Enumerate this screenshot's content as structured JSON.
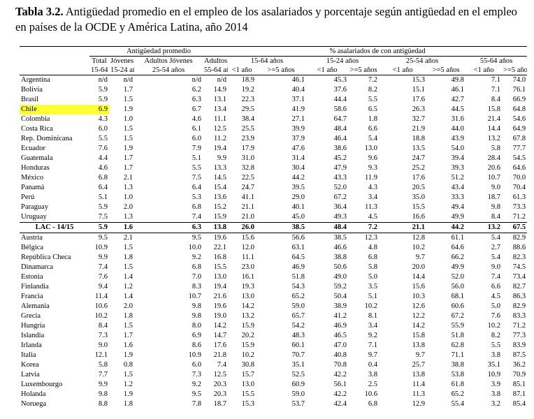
{
  "title": {
    "label": "Tabla 3.2.",
    "text": "Antigüedad promedio en el empleo de los asalariados y porcentaje según antigüedad en el empleo en países de la OCDE y América Latina, año 2014"
  },
  "table": {
    "group_headers": [
      "Antigüedad promedio",
      "% asalariados de con antigüedad"
    ],
    "headers": [
      "Total",
      "Jóvenes",
      "Adultos Jóvenes",
      "Adultos",
      "15-64 años",
      "15-24 años",
      "25-54 años",
      "55-64 años"
    ],
    "subheaders": [
      "15-64 años",
      "15-24 años",
      "25-54 años",
      "55-64 años",
      "<1 año",
      ">=5 años",
      "<1 año",
      ">=5 años",
      "<1 año",
      ">=5 años",
      "<1 año",
      ">=5 años"
    ],
    "rows_lac": [
      [
        "Argentina",
        "n/d",
        "n/d",
        "n/d",
        "n/d",
        "18.9",
        "46.1",
        "45.3",
        "7.2",
        "15.3",
        "49.8",
        "7.1",
        "74.0"
      ],
      [
        "Bolivia",
        "5.9",
        "1.7",
        "6.2",
        "14.9",
        "19.2",
        "40.4",
        "37.6",
        "8.2",
        "15.1",
        "46.1",
        "7.1",
        "76.1"
      ],
      [
        "Brasil",
        "5.9",
        "1.5",
        "6.3",
        "13.1",
        "22.3",
        "37.1",
        "44.4",
        "5.5",
        "17.6",
        "42.7",
        "8.4",
        "66.9"
      ],
      [
        "Chile",
        "6.9",
        "1.9",
        "6.7",
        "13.4",
        "29.5",
        "41.9",
        "58.6",
        "6.5",
        "26.3",
        "44.5",
        "15.8",
        "64.8"
      ],
      [
        "Colombia",
        "4.3",
        "1.0",
        "4.6",
        "11.1",
        "38.4",
        "27.1",
        "64.7",
        "1.8",
        "32.7",
        "31.6",
        "21.4",
        "54.6"
      ],
      [
        "Costa Rica",
        "6.0",
        "1.5",
        "6.1",
        "12.5",
        "25.5",
        "39.9",
        "48.4",
        "6.6",
        "21.9",
        "44.0",
        "14.4",
        "64.9"
      ],
      [
        "Rep. Dominicana",
        "5.5",
        "1.5",
        "6.0",
        "11.2",
        "23.9",
        "37.9",
        "46.4",
        "5.4",
        "18.8",
        "43.9",
        "13.2",
        "67.8"
      ],
      [
        "Ecuador",
        "7.6",
        "1.9",
        "7.9",
        "19.4",
        "17.9",
        "47.6",
        "38.6",
        "13.0",
        "13.5",
        "54.0",
        "5.8",
        "77.7"
      ],
      [
        "Guatemala",
        "4.4",
        "1.7",
        "5.1",
        "9.9",
        "31.0",
        "31.4",
        "45.2",
        "9.6",
        "24.7",
        "39.4",
        "28.4",
        "54.5"
      ],
      [
        "Honduras",
        "4.6",
        "1.7",
        "5.5",
        "13.3",
        "32.8",
        "30.4",
        "47.9",
        "9.3",
        "25.2",
        "39.3",
        "20.6",
        "64.6"
      ],
      [
        "México",
        "6.8",
        "2.1",
        "7.5",
        "14.5",
        "22.5",
        "44.2",
        "43.3",
        "11.9",
        "17.6",
        "51.2",
        "10.7",
        "70.0"
      ],
      [
        "Panamá",
        "6.4",
        "1.3",
        "6.4",
        "15.4",
        "24.7",
        "39.5",
        "52.0",
        "4.3",
        "20.5",
        "43.4",
        "9.0",
        "70.4"
      ],
      [
        "Perú",
        "5.1",
        "1.0",
        "5.3",
        "13.6",
        "41.1",
        "29.0",
        "67.2",
        "3.4",
        "35.0",
        "33.3",
        "18.7",
        "61.3"
      ],
      [
        "Paraguay",
        "5.9",
        "2.0",
        "6.8",
        "15.2",
        "21.1",
        "40.1",
        "36.4",
        "11.3",
        "15.5",
        "49.4",
        "9.8",
        "73.3"
      ],
      [
        "Uruguay",
        "7.5",
        "1.3",
        "7.4",
        "15.9",
        "21.0",
        "45.0",
        "49.3",
        "4.5",
        "16.6",
        "49.9",
        "8.4",
        "71.2"
      ]
    ],
    "total_lac": [
      "LAC - 14/15",
      "5.9",
      "1.6",
      "6.3",
      "13.8",
      "26.0",
      "38.5",
      "48.4",
      "7.2",
      "21.1",
      "44.2",
      "13.2",
      "67.5"
    ],
    "rows_oecd": [
      [
        "Austria",
        "9.5",
        "2.1",
        "9.5",
        "19.6",
        "15.6",
        "56.6",
        "38.5",
        "12.3",
        "12.8",
        "61.1",
        "5.4",
        "82.9"
      ],
      [
        "Bélgica",
        "10.9",
        "1.5",
        "10.0",
        "22.1",
        "12.0",
        "63.1",
        "46.6",
        "4.8",
        "10.2",
        "64.6",
        "2.7",
        "88.6"
      ],
      [
        "República Checa",
        "9.9",
        "1.8",
        "9.2",
        "16.8",
        "11.1",
        "64.5",
        "38.8",
        "6.8",
        "9.7",
        "66.2",
        "5.4",
        "82.3"
      ],
      [
        "Dinamarca",
        "7.4",
        "1.5",
        "6.8",
        "15.5",
        "23.0",
        "46.9",
        "50.6",
        "5.8",
        "20.0",
        "49.9",
        "9.0",
        "74.5"
      ],
      [
        "Estonia",
        "7.6",
        "1.4",
        "7.0",
        "13.0",
        "16.1",
        "51.8",
        "49.0",
        "5.0",
        "14.4",
        "52.0",
        "7.4",
        "73.4"
      ],
      [
        "Finlandia",
        "9.4",
        "1.2",
        "8.3",
        "19.4",
        "19.3",
        "54.3",
        "59.2",
        "3.5",
        "15.6",
        "56.0",
        "6.6",
        "82.7"
      ],
      [
        "Francia",
        "11.4",
        "1.4",
        "10.7",
        "21.6",
        "13.0",
        "65.2",
        "50.4",
        "5.1",
        "10.3",
        "68.1",
        "4.5",
        "86.3"
      ],
      [
        "Alemania",
        "10.6",
        "2.0",
        "9.8",
        "19.6",
        "14.2",
        "59.0",
        "38.9",
        "10.2",
        "12.6",
        "60.6",
        "5.0",
        "82.9"
      ],
      [
        "Grecia",
        "10.2",
        "1.8",
        "9.8",
        "19.0",
        "13.2",
        "65.7",
        "41.2",
        "8.1",
        "12.2",
        "67.2",
        "7.6",
        "83.3"
      ],
      [
        "Hungría",
        "8.4",
        "1.5",
        "8.0",
        "14.2",
        "15.9",
        "54.2",
        "46.9",
        "3.4",
        "14.2",
        "55.9",
        "10.2",
        "71.2"
      ],
      [
        "Islandia",
        "7.3",
        "1.7",
        "6.9",
        "14.7",
        "20.2",
        "48.3",
        "46.5",
        "9.2",
        "15.8",
        "51.8",
        "8.2",
        "77.3"
      ],
      [
        "Irlanda",
        "9.0",
        "1.6",
        "8.6",
        "17.6",
        "15.9",
        "60.1",
        "47.0",
        "7.1",
        "13.8",
        "62.8",
        "5.5",
        "83.9"
      ],
      [
        "Italia",
        "12.1",
        "1.9",
        "10.9",
        "21.8",
        "10.2",
        "70.7",
        "40.8",
        "9.7",
        "9.7",
        "71.1",
        "3.8",
        "87.5"
      ],
      [
        "Korea",
        "5.8",
        "0.8",
        "6.0",
        "7.4",
        "30.8",
        "35.1",
        "70.8",
        "0.4",
        "25.7",
        "38.8",
        "35.1",
        "36.2"
      ],
      [
        "Latvia",
        "7.7",
        "1.5",
        "7.3",
        "12.5",
        "15.7",
        "52.5",
        "42.2",
        "3.8",
        "13.8",
        "53.8",
        "10.9",
        "70.9"
      ],
      [
        "Luxembourgo",
        "9.9",
        "1.2",
        "9.2",
        "20.3",
        "13.0",
        "60.9",
        "56.1",
        "2.5",
        "11.4",
        "61.8",
        "3.9",
        "85.1"
      ],
      [
        "Holanda",
        "9.8",
        "1.9",
        "9.5",
        "20.3",
        "15.5",
        "59.0",
        "42.2",
        "10.6",
        "11.3",
        "65.2",
        "3.8",
        "87.1"
      ],
      [
        "Noruega",
        "8.8",
        "1.8",
        "7.8",
        "18.7",
        "15.3",
        "53.7",
        "42.4",
        "6.8",
        "12.9",
        "55.4",
        "3.2",
        "85.4"
      ]
    ]
  }
}
